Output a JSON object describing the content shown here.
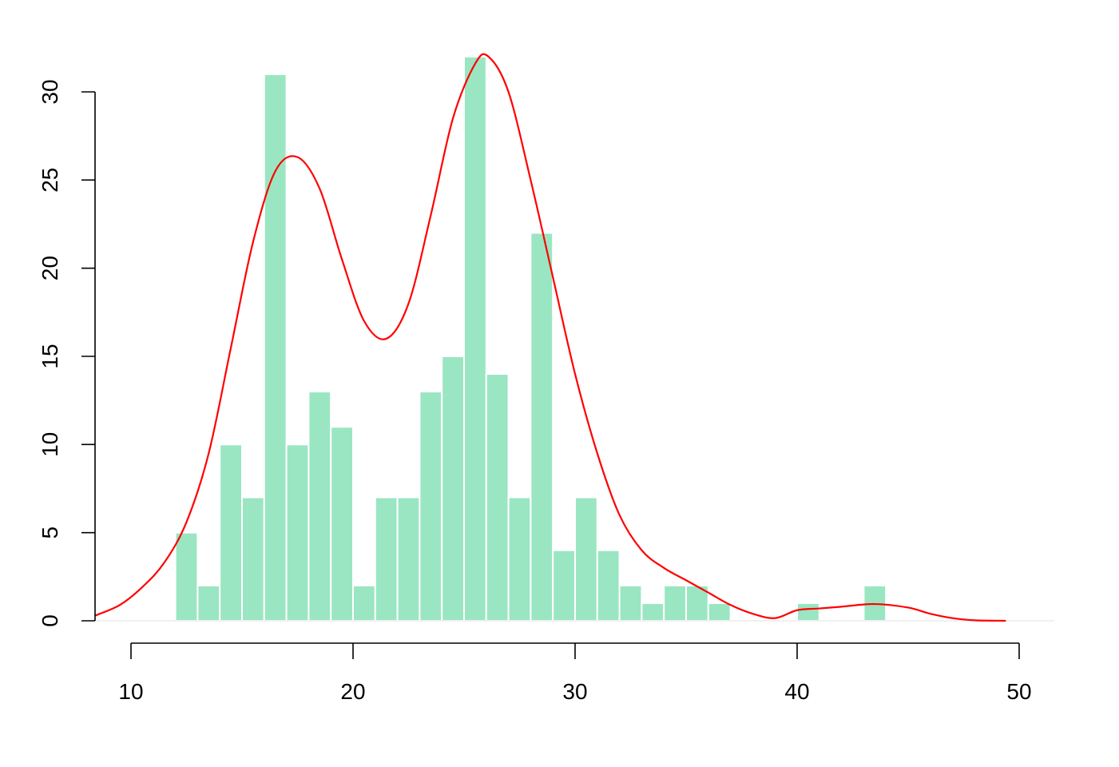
{
  "chart_data": {
    "type": "bar",
    "bin_width": 1,
    "bins": [
      {
        "start": 12,
        "end": 13,
        "count": 5
      },
      {
        "start": 13,
        "end": 14,
        "count": 2
      },
      {
        "start": 14,
        "end": 15,
        "count": 10
      },
      {
        "start": 15,
        "end": 16,
        "count": 7
      },
      {
        "start": 16,
        "end": 17,
        "count": 31
      },
      {
        "start": 17,
        "end": 18,
        "count": 10
      },
      {
        "start": 18,
        "end": 19,
        "count": 13
      },
      {
        "start": 19,
        "end": 20,
        "count": 11
      },
      {
        "start": 20,
        "end": 21,
        "count": 2
      },
      {
        "start": 21,
        "end": 22,
        "count": 7
      },
      {
        "start": 22,
        "end": 23,
        "count": 7
      },
      {
        "start": 23,
        "end": 24,
        "count": 13
      },
      {
        "start": 24,
        "end": 25,
        "count": 15
      },
      {
        "start": 25,
        "end": 26,
        "count": 32
      },
      {
        "start": 26,
        "end": 27,
        "count": 14
      },
      {
        "start": 27,
        "end": 28,
        "count": 7
      },
      {
        "start": 28,
        "end": 29,
        "count": 22
      },
      {
        "start": 29,
        "end": 30,
        "count": 4
      },
      {
        "start": 30,
        "end": 31,
        "count": 7
      },
      {
        "start": 31,
        "end": 32,
        "count": 4
      },
      {
        "start": 32,
        "end": 33,
        "count": 2
      },
      {
        "start": 33,
        "end": 34,
        "count": 1
      },
      {
        "start": 34,
        "end": 35,
        "count": 2
      },
      {
        "start": 35,
        "end": 36,
        "count": 2
      },
      {
        "start": 36,
        "end": 37,
        "count": 1
      },
      {
        "start": 40,
        "end": 41,
        "count": 1
      },
      {
        "start": 43,
        "end": 44,
        "count": 2
      }
    ],
    "density_curve": {
      "x": [
        8.4,
        9.5,
        10.5,
        11.5,
        12.5,
        13.5,
        14.5,
        15.5,
        16.5,
        17.5,
        18.5,
        19.5,
        20.5,
        21.5,
        22.5,
        23.5,
        24.5,
        25.5,
        26.1,
        27,
        28,
        29,
        30,
        31,
        32,
        33,
        34,
        35,
        36,
        37,
        38,
        39,
        40,
        41,
        42,
        43.5,
        45,
        46,
        47,
        48,
        49.4
      ],
      "y": [
        0.3,
        0.9,
        1.9,
        3.3,
        5.6,
        9.5,
        15.5,
        21.5,
        25.5,
        26.3,
        24.5,
        20.5,
        17,
        16,
        18,
        23,
        28.5,
        31.6,
        32,
        30,
        25,
        19.5,
        14,
        9.5,
        6,
        4,
        3,
        2.3,
        1.6,
        0.9,
        0.4,
        0.15,
        0.6,
        0.7,
        0.8,
        0.95,
        0.75,
        0.4,
        0.15,
        0.03,
        0
      ]
    },
    "xlim": [
      8.4,
      51.6
    ],
    "ylim": [
      0,
      30
    ],
    "x_ticks": [
      10,
      20,
      30,
      40,
      50
    ],
    "y_ticks": [
      0,
      5,
      10,
      15,
      20,
      25,
      30
    ],
    "x_tick_labels": [
      "10",
      "20",
      "30",
      "40",
      "50"
    ],
    "y_tick_labels": [
      "0",
      "5",
      "10",
      "15",
      "20",
      "25",
      "30"
    ],
    "title": "",
    "xlabel": "",
    "ylabel": "",
    "grid": false,
    "legend": "none",
    "colors": {
      "bar_fill": "#9ae6c2",
      "bar_border": "#ffffff",
      "curve": "#ff0000",
      "axis": "#000000",
      "baseline": "#e8e8e8"
    }
  }
}
